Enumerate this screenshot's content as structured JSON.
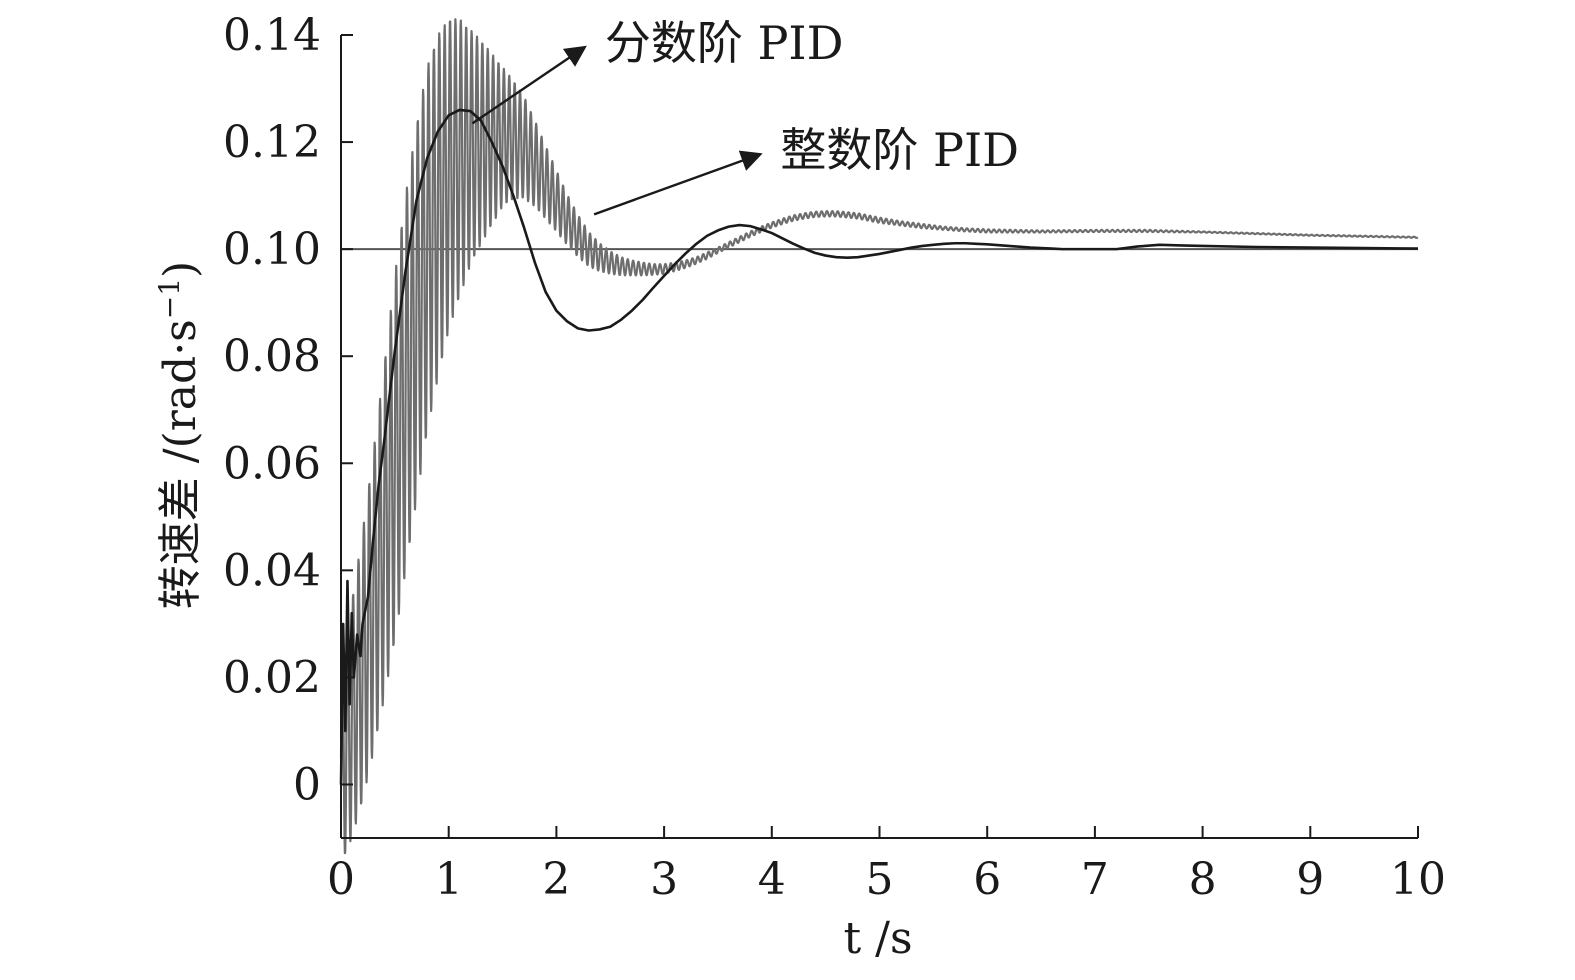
{
  "chart_data": {
    "type": "line",
    "title": "",
    "xlabel": "t /s",
    "ylabel_main": "转速差 /(rad·s",
    "ylabel_sup": "−1",
    "ylabel_close": ")",
    "xlim": [
      0,
      10
    ],
    "ylim": [
      -0.01,
      0.14
    ],
    "x_ticks": [
      0,
      1,
      2,
      3,
      4,
      5,
      6,
      7,
      8,
      9,
      10
    ],
    "x_tick_labels": [
      "0",
      "1",
      "2",
      "3",
      "4",
      "5",
      "6",
      "7",
      "8",
      "9",
      "10"
    ],
    "y_ticks": [
      0,
      0.02,
      0.04,
      0.06,
      0.08,
      0.1,
      0.12,
      0.14
    ],
    "y_tick_labels": [
      "0",
      "0.02",
      "0.04",
      "0.06",
      "0.08",
      "0.10",
      "0.12",
      "0.14"
    ],
    "grid": false,
    "reference_line": {
      "y": 0.1,
      "color": "#555555"
    },
    "series": [
      {
        "name": "分数阶 PID",
        "color": "#1a1a1a",
        "x": [
          0,
          0.02,
          0.04,
          0.06,
          0.08,
          0.1,
          0.12,
          0.15,
          0.18,
          0.2,
          0.25,
          0.3,
          0.35,
          0.4,
          0.5,
          0.6,
          0.7,
          0.8,
          0.9,
          1.0,
          1.1,
          1.2,
          1.3,
          1.4,
          1.5,
          1.6,
          1.7,
          1.8,
          1.9,
          2.0,
          2.1,
          2.2,
          2.3,
          2.4,
          2.5,
          2.6,
          2.7,
          2.8,
          2.9,
          3.0,
          3.1,
          3.2,
          3.3,
          3.4,
          3.5,
          3.6,
          3.7,
          3.8,
          3.9,
          4.0,
          4.1,
          4.2,
          4.3,
          4.4,
          4.5,
          4.6,
          4.7,
          4.8,
          4.9,
          5.0,
          5.1,
          5.2,
          5.3,
          5.4,
          5.5,
          5.6,
          5.7,
          5.8,
          5.9,
          6.0,
          6.2,
          6.4,
          6.6,
          6.7,
          6.8,
          7.0,
          7.2,
          7.4,
          7.6,
          7.8,
          8.0,
          8.5,
          9.0,
          9.5,
          10.0
        ],
        "y": [
          0.0,
          0.03,
          0.01,
          0.038,
          0.015,
          0.032,
          0.02,
          0.028,
          0.024,
          0.03,
          0.035,
          0.046,
          0.056,
          0.064,
          0.081,
          0.096,
          0.109,
          0.117,
          0.122,
          0.125,
          0.126,
          0.1258,
          0.124,
          0.12,
          0.1155,
          0.11,
          0.104,
          0.0975,
          0.092,
          0.0885,
          0.0865,
          0.0852,
          0.0848,
          0.085,
          0.0855,
          0.0868,
          0.0885,
          0.0905,
          0.0928,
          0.095,
          0.0972,
          0.0992,
          0.101,
          0.1025,
          0.1035,
          0.1042,
          0.1045,
          0.1043,
          0.1037,
          0.103,
          0.102,
          0.101,
          0.1001,
          0.0993,
          0.0988,
          0.0985,
          0.0984,
          0.0985,
          0.0988,
          0.0991,
          0.0995,
          0.0999,
          0.1003,
          0.1006,
          0.1008,
          0.101,
          0.1011,
          0.1011,
          0.101,
          0.1009,
          0.1006,
          0.1003,
          0.1001,
          0.1,
          0.1,
          0.1,
          0.1,
          0.1005,
          0.1008,
          0.1007,
          0.1006,
          0.1004,
          0.1003,
          0.1002,
          0.1001
        ]
      },
      {
        "name": "整数阶 PID",
        "color": "#6e6e6e",
        "x": [
          0,
          0.1,
          0.2,
          0.3,
          0.4,
          0.5,
          0.6,
          0.7,
          0.8,
          0.9,
          1.0,
          1.1,
          1.2,
          1.3,
          1.4,
          1.5,
          1.6,
          1.7,
          1.8,
          1.9,
          2.0,
          2.1,
          2.2,
          2.3,
          2.4,
          2.5,
          2.6,
          2.7,
          2.8,
          2.9,
          3.0,
          3.1,
          3.2,
          3.3,
          3.4,
          3.5,
          3.6,
          3.7,
          3.8,
          3.9,
          4.0,
          4.1,
          4.2,
          4.3,
          4.4,
          4.5,
          4.6,
          4.7,
          4.8,
          4.9,
          5.0,
          5.2,
          5.4,
          5.6,
          5.8,
          6.0,
          6.5,
          7.0,
          7.5,
          8.0,
          8.5,
          9.0,
          9.5,
          10.0
        ],
        "y": [
          0.005,
          0.012,
          0.022,
          0.034,
          0.047,
          0.061,
          0.075,
          0.088,
          0.1,
          0.108,
          0.114,
          0.117,
          0.119,
          0.12,
          0.1205,
          0.121,
          0.1205,
          0.119,
          0.116,
          0.1125,
          0.109,
          0.1055,
          0.1025,
          0.1,
          0.0985,
          0.0975,
          0.0968,
          0.0965,
          0.0963,
          0.0962,
          0.0963,
          0.0967,
          0.0972,
          0.0979,
          0.0988,
          0.0998,
          0.1008,
          0.1018,
          0.1028,
          0.1037,
          0.1045,
          0.1052,
          0.1058,
          0.1062,
          0.1065,
          0.1066,
          0.1066,
          0.1064,
          0.1062,
          0.1058,
          0.1054,
          0.1048,
          0.1043,
          0.1039,
          0.1036,
          0.1034,
          0.1033,
          0.1034,
          0.1034,
          0.1032,
          0.1029,
          0.1026,
          0.1024,
          0.1022
        ],
        "oscillation_amplitude": [
          0.02,
          0.022,
          0.025,
          0.028,
          0.031,
          0.034,
          0.035,
          0.035,
          0.034,
          0.032,
          0.029,
          0.026,
          0.022,
          0.019,
          0.016,
          0.013,
          0.011,
          0.0095,
          0.008,
          0.0068,
          0.0057,
          0.0047,
          0.0039,
          0.0032,
          0.0026,
          0.0021,
          0.0017,
          0.0014,
          0.0012,
          0.001,
          0.0009,
          0.0008,
          0.0007,
          0.0006,
          0.0006,
          0.0005,
          0.0005,
          0.0005,
          0.0005,
          0.0005,
          0.0005,
          0.0005,
          0.0005,
          0.0005,
          0.0005,
          0.0005,
          0.0005,
          0.0005,
          0.0005,
          0.0005,
          0.0005,
          0.0004,
          0.0004,
          0.0003,
          0.0003,
          0.0003,
          0.0002,
          0.0002,
          0.0002,
          0.0001,
          0.0001,
          0.0001,
          0.0001,
          0.0001
        ],
        "oscillation_period": 0.05
      }
    ],
    "annotations": [
      {
        "label": "分数阶 PID",
        "series": 0,
        "point_x": 1.22,
        "point_y": 0.1235,
        "text_x": 2.45,
        "text_y": 0.1355
      },
      {
        "label": "整数阶 PID",
        "series": 1,
        "point_x": 2.35,
        "point_y": 0.1065,
        "text_x": 4.08,
        "text_y": 0.1155
      }
    ]
  }
}
